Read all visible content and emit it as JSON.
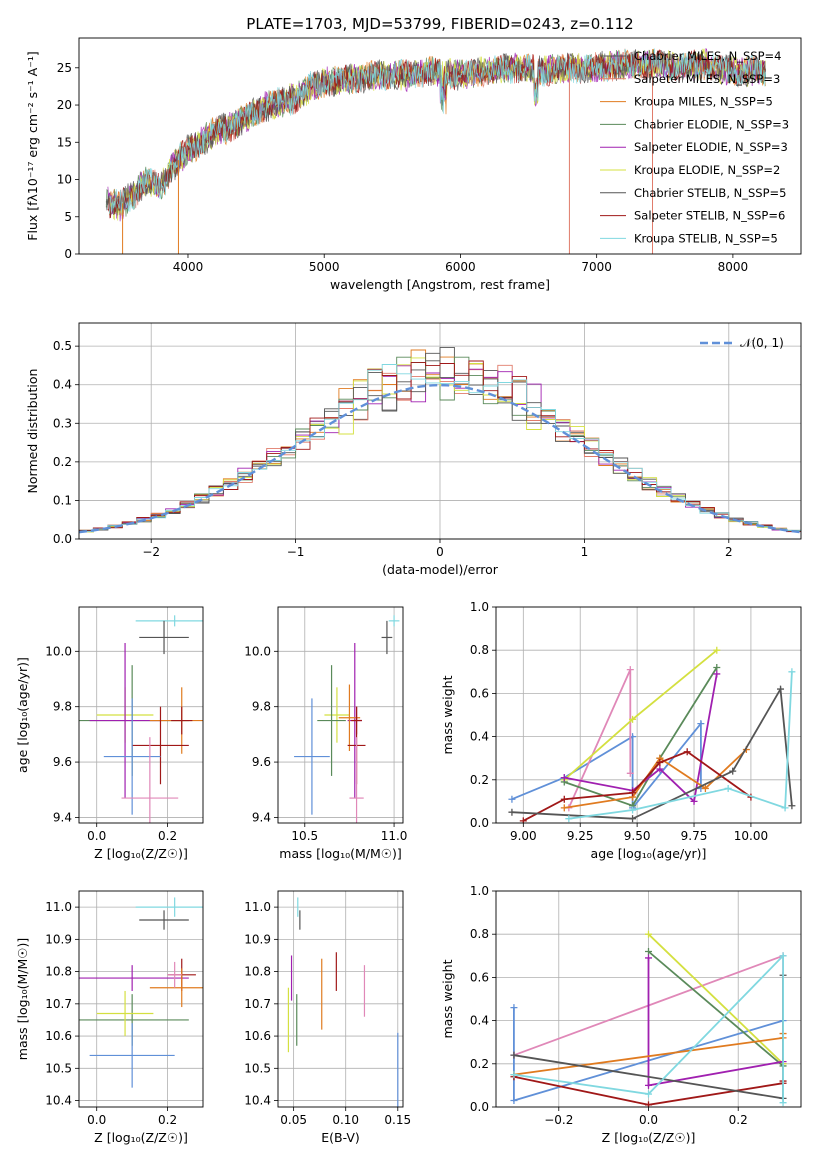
{
  "figure_title": "PLATE=1703, MJD=53799, FIBERID=0243, z=0.112",
  "colors": {
    "c_miles": "#555555",
    "s_miles": "#e07b6a",
    "k_miles": "#e07b20",
    "c_elodie": "#5a8a5a",
    "s_elodie": "#a020b0",
    "k_elodie": "#d4e040",
    "c_stelib": "#555555",
    "s_stelib": "#a01818",
    "k_stelib": "#80d8e0",
    "blue": "#6090d8",
    "pink": "#e088b8",
    "gaussian": "#6090d8"
  },
  "chart_data": [
    {
      "id": "spectrum",
      "type": "line",
      "title": "PLATE=1703, MJD=53799, FIBERID=0243, z=0.112",
      "xlabel": "wavelength [Angstrom, rest frame]",
      "ylabel": "Flux [fλ10⁻¹⁷ erg cm⁻² s⁻¹ A⁻¹]",
      "xlim": [
        3200,
        8500
      ],
      "ylim": [
        0,
        29
      ],
      "xticks": [
        "4000",
        "5000",
        "6000",
        "7000",
        "8000"
      ],
      "yticks": [
        "0",
        "5",
        "10",
        "15",
        "20",
        "25"
      ],
      "grid": false,
      "legend_position": "top-right",
      "envelope": {
        "x": [
          3400,
          3500,
          3600,
          3700,
          3800,
          3900,
          4000,
          4100,
          4200,
          4300,
          4400,
          4500,
          4600,
          4700,
          4800,
          4900,
          5000,
          5200,
          5400,
          5600,
          5800,
          6000,
          6200,
          6400,
          6600,
          6800,
          7000,
          7200,
          7400,
          7600,
          7800,
          8000,
          8200
        ],
        "y": [
          7,
          6.5,
          8,
          10,
          9,
          12,
          14,
          15,
          16.5,
          17,
          18,
          19,
          20,
          20.5,
          21,
          22.5,
          23,
          23.5,
          24,
          24,
          24.5,
          24,
          24.5,
          25,
          24.5,
          25,
          25,
          25.5,
          25.5,
          25,
          25.5,
          24.5,
          24.5
        ]
      },
      "series": [
        {
          "name": "Chabrier MILES, N_SSP=4",
          "color_key": "c_miles"
        },
        {
          "name": "Salpeter MILES, N_SSP=3",
          "color_key": "s_miles"
        },
        {
          "name": "Kroupa MILES, N_SSP=5",
          "color_key": "k_miles"
        },
        {
          "name": "Chabrier ELODIE, N_SSP=3",
          "color_key": "c_elodie"
        },
        {
          "name": "Salpeter ELODIE, N_SSP=3",
          "color_key": "s_elodie"
        },
        {
          "name": "Kroupa ELODIE, N_SSP=2",
          "color_key": "k_elodie"
        },
        {
          "name": "Chabrier STELIB, N_SSP=5",
          "color_key": "c_stelib"
        },
        {
          "name": "Salpeter STELIB, N_SSP=6",
          "color_key": "s_stelib"
        },
        {
          "name": "Kroupa STELIB, N_SSP=5",
          "color_key": "k_stelib"
        }
      ]
    },
    {
      "id": "residuals",
      "type": "histogram",
      "xlabel": "(data-model)/error",
      "ylabel": "Normed distribution",
      "xlim": [
        -2.5,
        2.5
      ],
      "ylim": [
        0,
        0.56
      ],
      "xticks": [
        "−2",
        "−1",
        "0",
        "1",
        "2"
      ],
      "yticks": [
        "0.0",
        "0.1",
        "0.2",
        "0.3",
        "0.4",
        "0.5"
      ],
      "grid": true,
      "legend_position": "top-right",
      "gaussian_label": "𝒩(0, 1)"
    },
    {
      "id": "z_age",
      "type": "errorbar",
      "xlabel": "Z [log₁₀(Z/Z☉)]",
      "ylabel": "age  [log₁₀(age/yr)]",
      "xlim": [
        -0.05,
        0.3
      ],
      "ylim": [
        9.38,
        10.16
      ],
      "xticks": [
        "0.0",
        "0.2"
      ],
      "yticks": [
        "9.4",
        "9.6",
        "9.8",
        "10.0"
      ],
      "grid": true,
      "points": [
        {
          "x": 0.22,
          "y": 10.11,
          "xerr": 0.11,
          "yerr": 0.02,
          "color_key": "k_stelib"
        },
        {
          "x": 0.19,
          "y": 10.05,
          "xerr": 0.07,
          "yerr": 0.06,
          "color_key": "c_stelib"
        },
        {
          "x": 0.08,
          "y": 9.77,
          "xerr": 0.08,
          "yerr": 0.1,
          "color_key": "k_elodie"
        },
        {
          "x": 0.1,
          "y": 9.75,
          "xerr": 0.16,
          "yerr": 0.2,
          "color_key": "c_elodie"
        },
        {
          "x": 0.08,
          "y": 9.75,
          "xerr": 0.1,
          "yerr": 0.28,
          "color_key": "s_elodie"
        },
        {
          "x": 0.24,
          "y": 9.75,
          "xerr": 0.09,
          "yerr": 0.12,
          "color_key": "k_miles"
        },
        {
          "x": 0.24,
          "y": 9.75,
          "xerr": 0.03,
          "yerr": 0.05,
          "color_key": "s_stelib"
        },
        {
          "x": 0.18,
          "y": 9.66,
          "xerr": 0.08,
          "yerr": 0.14,
          "color_key": "s_stelib"
        },
        {
          "x": 0.1,
          "y": 9.62,
          "xerr": 0.08,
          "yerr": 0.21,
          "color_key": "blue"
        },
        {
          "x": 0.15,
          "y": 9.47,
          "xerr": 0.08,
          "yerr": 0.22,
          "color_key": "pink"
        }
      ]
    },
    {
      "id": "mass_age",
      "type": "errorbar",
      "xlabel": "mass [log₁₀(M/M☉)]",
      "ylabel": "",
      "xlim": [
        10.35,
        11.05
      ],
      "ylim": [
        9.38,
        10.16
      ],
      "xticks": [
        "10.5",
        "11.0"
      ],
      "yticks": [
        "9.4",
        "9.6",
        "9.8",
        "10.0"
      ],
      "grid": true,
      "points": [
        {
          "x": 11.0,
          "y": 10.11,
          "xerr": 0.03,
          "yerr": 0.02,
          "color_key": "k_stelib"
        },
        {
          "x": 10.96,
          "y": 10.05,
          "xerr": 0.03,
          "yerr": 0.06,
          "color_key": "c_stelib"
        },
        {
          "x": 10.68,
          "y": 9.77,
          "xerr": 0.07,
          "yerr": 0.1,
          "color_key": "k_elodie"
        },
        {
          "x": 10.65,
          "y": 9.75,
          "xerr": 0.08,
          "yerr": 0.2,
          "color_key": "c_elodie"
        },
        {
          "x": 10.78,
          "y": 9.75,
          "xerr": 0.04,
          "yerr": 0.28,
          "color_key": "s_elodie"
        },
        {
          "x": 10.75,
          "y": 9.76,
          "xerr": 0.06,
          "yerr": 0.12,
          "color_key": "k_miles"
        },
        {
          "x": 10.79,
          "y": 9.75,
          "xerr": 0.03,
          "yerr": 0.05,
          "color_key": "s_stelib"
        },
        {
          "x": 10.79,
          "y": 9.66,
          "xerr": 0.05,
          "yerr": 0.14,
          "color_key": "s_stelib"
        },
        {
          "x": 10.54,
          "y": 9.62,
          "xerr": 0.1,
          "yerr": 0.21,
          "color_key": "blue"
        },
        {
          "x": 10.79,
          "y": 9.47,
          "xerr": 0.04,
          "yerr": 0.22,
          "color_key": "pink"
        }
      ]
    },
    {
      "id": "age_weight",
      "type": "line",
      "xlabel": "age  [log₁₀(age/yr)]",
      "ylabel": "mass weight",
      "xlim": [
        8.88,
        10.22
      ],
      "ylim": [
        0,
        1
      ],
      "xticks": [
        "9.00",
        "9.25",
        "9.50",
        "9.75",
        "10.00"
      ],
      "yticks": [
        "0.0",
        "0.2",
        "0.4",
        "0.6",
        "0.8",
        "1.0"
      ],
      "grid": true,
      "series": [
        {
          "color_key": "blue",
          "x": [
            8.95,
            9.18,
            9.48,
            9.48,
            9.78,
            9.78
          ],
          "y": [
            0.11,
            0.21,
            0.4,
            0.07,
            0.46,
            0.16
          ]
        },
        {
          "color_key": "pink",
          "x": [
            9.2,
            9.47,
            9.47
          ],
          "y": [
            0.07,
            0.71,
            0.23
          ]
        },
        {
          "color_key": "k_elodie",
          "x": [
            9.18,
            9.48,
            9.85
          ],
          "y": [
            0.2,
            0.48,
            0.8
          ]
        },
        {
          "color_key": "c_elodie",
          "x": [
            9.18,
            9.48,
            9.6,
            9.85
          ],
          "y": [
            0.19,
            0.08,
            0.3,
            0.72
          ]
        },
        {
          "color_key": "s_elodie",
          "x": [
            9.18,
            9.48,
            9.6,
            9.75,
            9.85
          ],
          "y": [
            0.21,
            0.15,
            0.25,
            0.1,
            0.69
          ]
        },
        {
          "color_key": "k_miles",
          "x": [
            9.18,
            9.48,
            9.6,
            9.8,
            9.98
          ],
          "y": [
            0.07,
            0.12,
            0.3,
            0.16,
            0.34
          ]
        },
        {
          "color_key": "s_stelib",
          "x": [
            9.0,
            9.18,
            9.48,
            9.6,
            9.72,
            10.0
          ],
          "y": [
            0.01,
            0.11,
            0.14,
            0.28,
            0.33,
            0.12
          ]
        },
        {
          "color_key": "c_stelib",
          "x": [
            8.95,
            9.48,
            9.92,
            10.13,
            10.18
          ],
          "y": [
            0.05,
            0.02,
            0.24,
            0.62,
            0.08
          ]
        },
        {
          "color_key": "k_stelib",
          "x": [
            9.2,
            9.48,
            9.9,
            10.15,
            10.18
          ],
          "y": [
            0.02,
            0.06,
            0.16,
            0.07,
            0.7
          ]
        }
      ]
    },
    {
      "id": "z_mass",
      "type": "errorbar",
      "xlabel": "Z [log₁₀(Z/Z☉)]",
      "ylabel": "mass [log₁₀(M/M☉)]",
      "xlim": [
        -0.05,
        0.3
      ],
      "ylim": [
        10.38,
        11.05
      ],
      "xticks": [
        "0.0",
        "0.2"
      ],
      "yticks": [
        "10.4",
        "10.5",
        "10.6",
        "10.7",
        "10.8",
        "10.9",
        "11.0"
      ],
      "grid": true,
      "points": [
        {
          "x": 0.22,
          "y": 11.0,
          "xerr": 0.11,
          "yerr": 0.03,
          "color_key": "k_stelib"
        },
        {
          "x": 0.19,
          "y": 10.96,
          "xerr": 0.07,
          "yerr": 0.03,
          "color_key": "c_stelib"
        },
        {
          "x": 0.1,
          "y": 10.78,
          "xerr": 0.16,
          "yerr": 0.04,
          "color_key": "s_elodie"
        },
        {
          "x": 0.24,
          "y": 10.79,
          "xerr": 0.04,
          "yerr": 0.05,
          "color_key": "s_stelib"
        },
        {
          "x": 0.24,
          "y": 10.75,
          "xerr": 0.09,
          "yerr": 0.06,
          "color_key": "k_miles"
        },
        {
          "x": 0.1,
          "y": 10.65,
          "xerr": 0.16,
          "yerr": 0.08,
          "color_key": "c_elodie"
        },
        {
          "x": 0.08,
          "y": 10.67,
          "xerr": 0.08,
          "yerr": 0.07,
          "color_key": "k_elodie"
        },
        {
          "x": 0.1,
          "y": 10.54,
          "xerr": 0.12,
          "yerr": 0.1,
          "color_key": "blue"
        },
        {
          "x": 0.22,
          "y": 10.79,
          "xerr": 0.02,
          "yerr": 0.04,
          "color_key": "pink"
        }
      ]
    },
    {
      "id": "ebv_mass",
      "type": "errorbar",
      "xlabel": "E(B-V)",
      "ylabel": "",
      "xlim": [
        0.035,
        0.155
      ],
      "ylim": [
        10.38,
        11.05
      ],
      "xticks": [
        "0.05",
        "0.10",
        "0.15"
      ],
      "yticks": [
        "10.4",
        "10.5",
        "10.6",
        "10.7",
        "10.8",
        "10.9",
        "11.0"
      ],
      "grid": true,
      "points": [
        {
          "x": 0.054,
          "y": 11.0,
          "xerr": 0,
          "yerr": 0.03,
          "color_key": "k_stelib"
        },
        {
          "x": 0.056,
          "y": 10.96,
          "xerr": 0,
          "yerr": 0.03,
          "color_key": "c_stelib"
        },
        {
          "x": 0.048,
          "y": 10.78,
          "xerr": 0,
          "yerr": 0.07,
          "color_key": "s_elodie"
        },
        {
          "x": 0.045,
          "y": 10.65,
          "xerr": 0,
          "yerr": 0.1,
          "color_key": "k_elodie"
        },
        {
          "x": 0.053,
          "y": 10.65,
          "xerr": 0,
          "yerr": 0.08,
          "color_key": "c_elodie"
        },
        {
          "x": 0.077,
          "y": 10.73,
          "xerr": 0,
          "yerr": 0.11,
          "color_key": "k_miles"
        },
        {
          "x": 0.091,
          "y": 10.8,
          "xerr": 0,
          "yerr": 0.06,
          "color_key": "s_stelib"
        },
        {
          "x": 0.118,
          "y": 10.74,
          "xerr": 0,
          "yerr": 0.08,
          "color_key": "pink"
        },
        {
          "x": 0.15,
          "y": 10.49,
          "xerr": 0,
          "yerr": 0.12,
          "color_key": "blue"
        }
      ]
    },
    {
      "id": "z_weight",
      "type": "line",
      "xlabel": "Z [log₁₀(Z/Z☉)]",
      "ylabel": "mass weight",
      "xlim": [
        -0.34,
        0.34
      ],
      "ylim": [
        0,
        1
      ],
      "xticks": [
        "−0.2",
        "0.0",
        "0.2"
      ],
      "yticks": [
        "0.0",
        "0.2",
        "0.4",
        "0.6",
        "0.8",
        "1.0"
      ],
      "grid": true,
      "series": [
        {
          "color_key": "blue",
          "x": [
            -0.3,
            -0.3,
            0.3
          ],
          "y": [
            0.46,
            0.03,
            0.4
          ]
        },
        {
          "color_key": "pink",
          "x": [
            -0.3,
            0.3,
            0.3
          ],
          "y": [
            0.24,
            0.7,
            0.2
          ]
        },
        {
          "color_key": "k_elodie",
          "x": [
            0.0,
            0.3
          ],
          "y": [
            0.8,
            0.2
          ]
        },
        {
          "color_key": "c_elodie",
          "x": [
            0.0,
            0.3
          ],
          "y": [
            0.72,
            0.19
          ]
        },
        {
          "color_key": "s_elodie",
          "x": [
            0.0,
            0.0,
            0.3
          ],
          "y": [
            0.69,
            0.1,
            0.21
          ]
        },
        {
          "color_key": "k_miles",
          "x": [
            -0.3,
            0.3,
            0.3
          ],
          "y": [
            0.15,
            0.32,
            0.34
          ]
        },
        {
          "color_key": "s_stelib",
          "x": [
            -0.3,
            0.0,
            0.3,
            0.3
          ],
          "y": [
            0.14,
            0.01,
            0.11,
            0.12
          ]
        },
        {
          "color_key": "c_stelib",
          "x": [
            -0.3,
            0.3,
            0.3
          ],
          "y": [
            0.24,
            0.04,
            0.61
          ]
        },
        {
          "color_key": "k_stelib",
          "x": [
            -0.3,
            0.0,
            0.3,
            0.3
          ],
          "y": [
            0.15,
            0.06,
            0.7,
            0.02
          ]
        }
      ]
    }
  ]
}
